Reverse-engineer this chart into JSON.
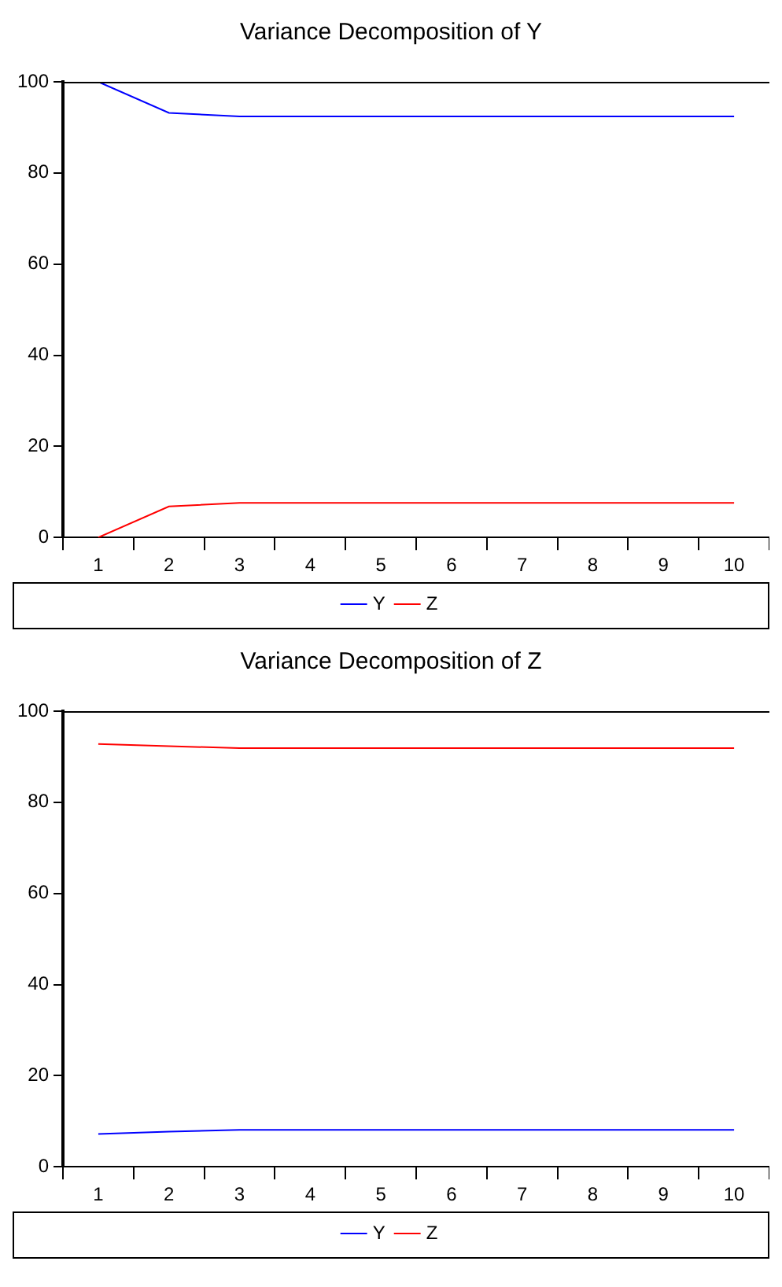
{
  "chart_data": [
    {
      "type": "line",
      "title": "Variance Decomposition of Y",
      "categories": [
        "1",
        "2",
        "3",
        "4",
        "5",
        "6",
        "7",
        "8",
        "9",
        "10"
      ],
      "ylim": [
        0,
        100
      ],
      "yticks": [
        0,
        20,
        40,
        60,
        80,
        100
      ],
      "grid": false,
      "legend": "bottom",
      "series": [
        {
          "name": "Y",
          "color": "#0000ff",
          "values": [
            100,
            93.2,
            92.4,
            92.4,
            92.4,
            92.4,
            92.4,
            92.4,
            92.4,
            92.4
          ]
        },
        {
          "name": "Z",
          "color": "#ff0000",
          "values": [
            0,
            6.8,
            7.6,
            7.6,
            7.6,
            7.6,
            7.6,
            7.6,
            7.6,
            7.6
          ]
        }
      ]
    },
    {
      "type": "line",
      "title": "Variance Decomposition of Z",
      "categories": [
        "1",
        "2",
        "3",
        "4",
        "5",
        "6",
        "7",
        "8",
        "9",
        "10"
      ],
      "ylim": [
        0,
        100
      ],
      "yticks": [
        0,
        20,
        40,
        60,
        80,
        100
      ],
      "grid": false,
      "legend": "bottom",
      "series": [
        {
          "name": "Y",
          "color": "#0000ff",
          "values": [
            7.2,
            7.7,
            8.1,
            8.1,
            8.1,
            8.1,
            8.1,
            8.1,
            8.1,
            8.1
          ]
        },
        {
          "name": "Z",
          "color": "#ff0000",
          "values": [
            92.8,
            92.3,
            91.9,
            91.9,
            91.9,
            91.9,
            91.9,
            91.9,
            91.9,
            91.9
          ]
        }
      ]
    }
  ]
}
